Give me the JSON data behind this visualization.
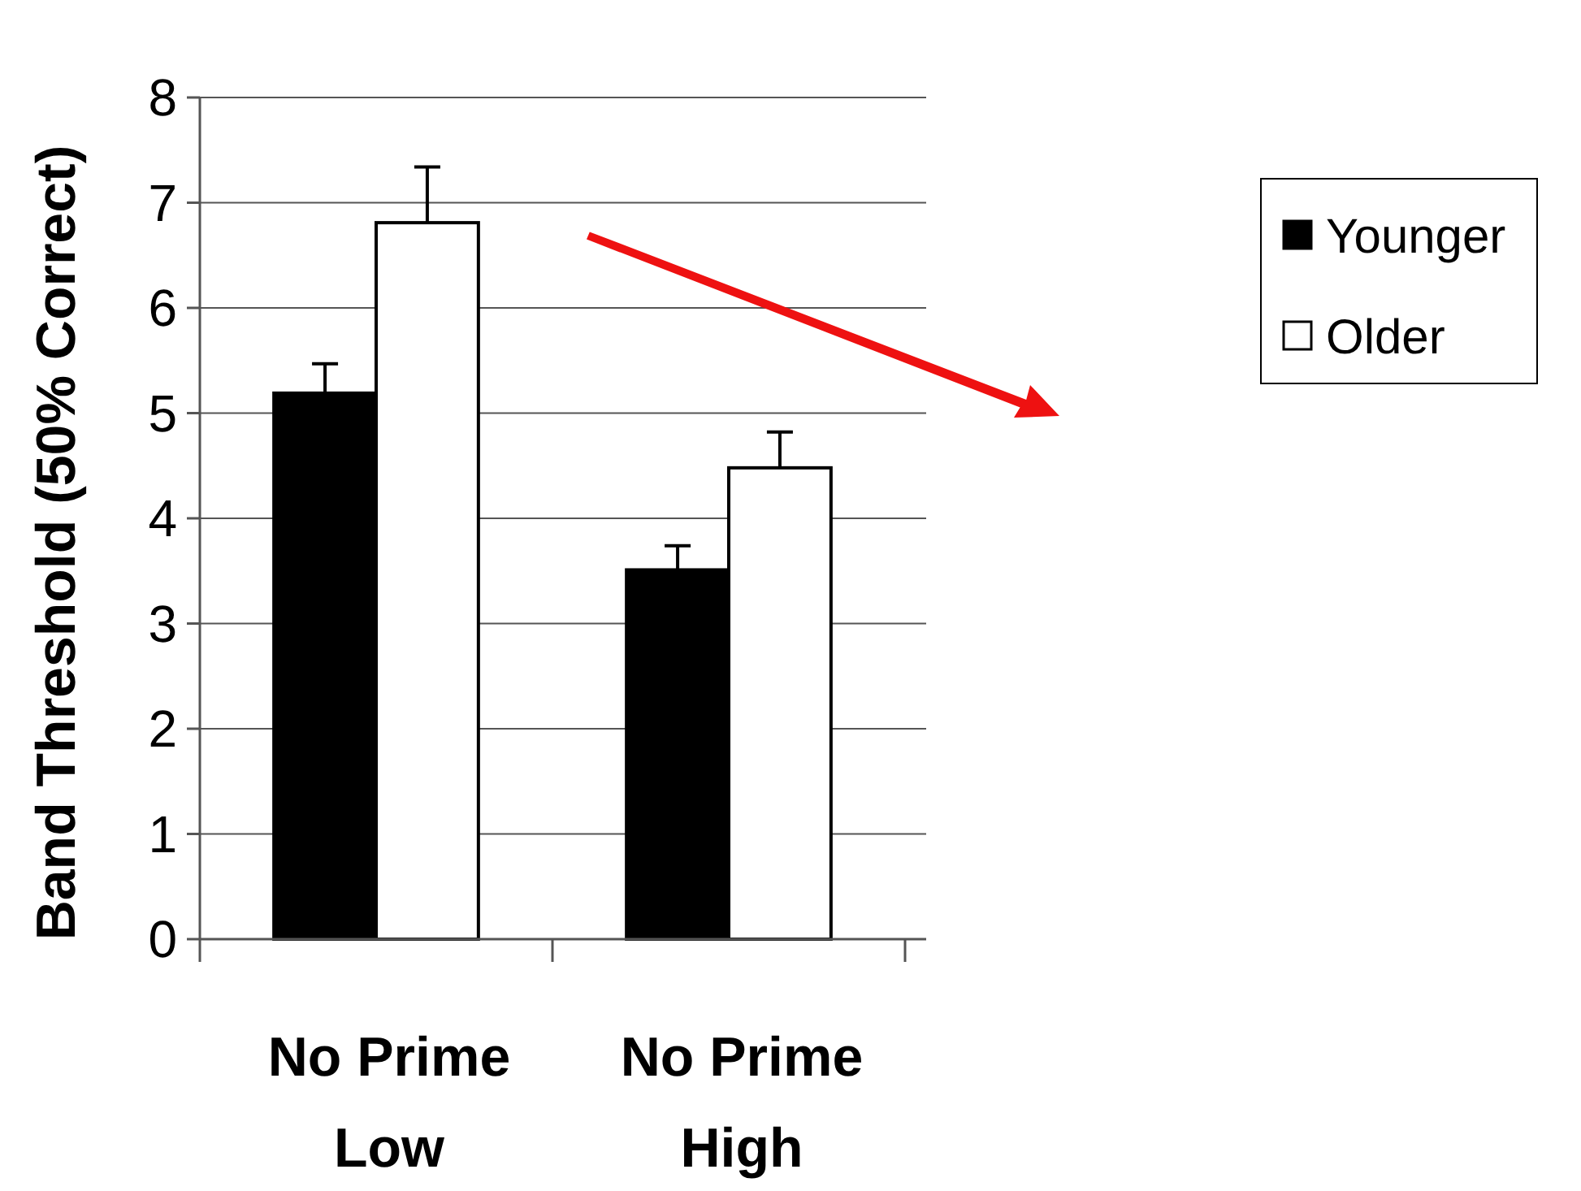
{
  "chart_data": {
    "type": "bar",
    "ylabel": "Band Threshold (50% Correct)",
    "categories": [
      "No Prime\nLow",
      "No Prime\nHigh"
    ],
    "series": [
      {
        "name": "Younger",
        "color": "#000000",
        "values": [
          5.19,
          3.51
        ],
        "errors": [
          [
            5.19,
            5.47
          ],
          [
            3.51,
            3.74
          ]
        ]
      },
      {
        "name": "Older",
        "color": "#ffffff",
        "values": [
          6.81,
          4.48
        ],
        "errors": [
          [
            6.81,
            7.34
          ],
          [
            4.48,
            4.82
          ]
        ]
      }
    ],
    "ylim": [
      0,
      8
    ],
    "yticks": [
      0,
      1,
      2,
      3,
      4,
      5,
      6,
      7,
      8
    ],
    "grid": "y",
    "legend": "top right"
  }
}
